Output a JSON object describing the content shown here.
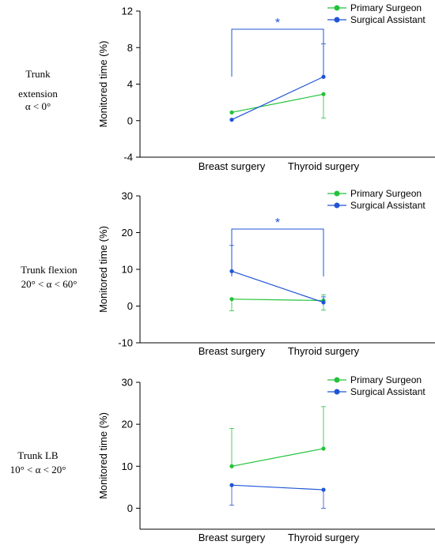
{
  "colors": {
    "primary": "#22c33a",
    "assistant": "#1f54d6"
  },
  "chart_data": [
    {
      "type": "line",
      "row_label": [
        "Trunk",
        "extension",
        "α < 0°"
      ],
      "categories": [
        "Breast surgery",
        "Thyroid surgery"
      ],
      "ylabel": "Monitored time (%)",
      "ylim": [
        -4,
        12
      ],
      "yticks": [
        -4,
        0,
        4,
        8,
        12
      ],
      "legend_position": "top-right",
      "series": [
        {
          "name": "Primary Surgeon",
          "color_key": "primary",
          "values": [
            0.9,
            2.9
          ],
          "err_up": [
            0,
            0
          ],
          "err_down": [
            0,
            2.6
          ]
        },
        {
          "name": "Surgical Assistant",
          "color_key": "assistant",
          "values": [
            0.1,
            4.8
          ],
          "err_up": [
            0,
            3.6
          ],
          "err_down": [
            0,
            0
          ]
        }
      ],
      "significance": {
        "label": "*",
        "between": [
          0,
          1
        ]
      }
    },
    {
      "type": "line",
      "row_label": [
        "Trunk flexion",
        "20° < α < 60°"
      ],
      "categories": [
        "Breast surgery",
        "Thyroid surgery"
      ],
      "ylabel": "Monitored time (%)",
      "ylim": [
        -10,
        30
      ],
      "yticks": [
        -10,
        0,
        10,
        20,
        30
      ],
      "legend_position": "top-right",
      "series": [
        {
          "name": "Primary Surgeon",
          "color_key": "primary",
          "values": [
            1.9,
            1.5
          ],
          "err_up": [
            0,
            1.6
          ],
          "err_down": [
            3.2,
            2.6
          ]
        },
        {
          "name": "Surgical Assistant",
          "color_key": "assistant",
          "values": [
            9.5,
            1.0
          ],
          "err_up": [
            7.0,
            1.5
          ],
          "err_down": [
            0,
            0
          ]
        }
      ],
      "significance": {
        "label": "*",
        "between": [
          0,
          1
        ]
      }
    },
    {
      "type": "line",
      "row_label": [
        "Trunk LB",
        "10° < α < 20°"
      ],
      "categories": [
        "Breast surgery",
        "Thyroid surgery"
      ],
      "ylabel": "Monitored time (%)",
      "ylim": [
        -5,
        30
      ],
      "yticks": [
        0,
        10,
        20,
        30
      ],
      "legend_position": "top-right",
      "series": [
        {
          "name": "Primary Surgeon",
          "color_key": "primary",
          "values": [
            10.0,
            14.2
          ],
          "err_up": [
            9.0,
            10.0
          ],
          "err_down": [
            0,
            0
          ]
        },
        {
          "name": "Surgical Assistant",
          "color_key": "assistant",
          "values": [
            5.5,
            4.4
          ],
          "err_up": [
            0,
            0
          ],
          "err_down": [
            4.8,
            4.4
          ]
        }
      ],
      "significance": null
    }
  ]
}
